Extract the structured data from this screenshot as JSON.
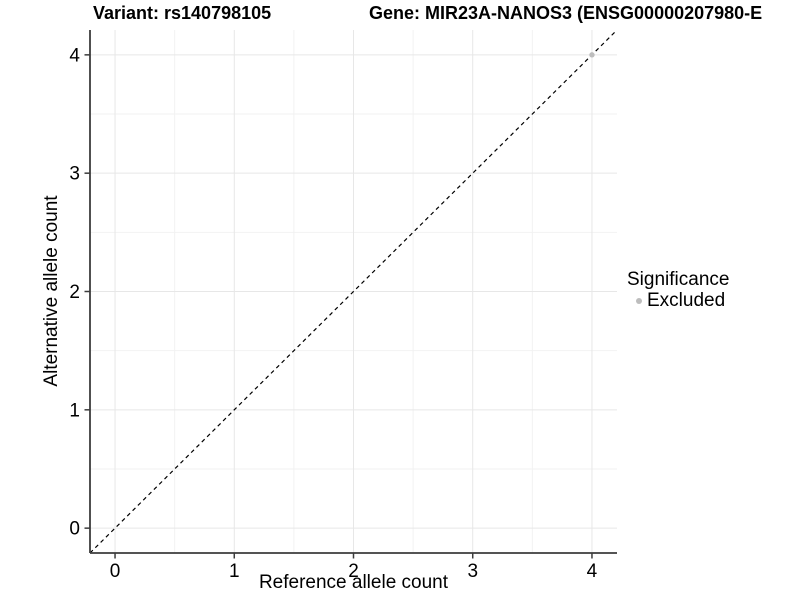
{
  "header": {
    "title_left": "Variant: rs140798105",
    "title_right": "Gene: MIR23A-NANOS3 (ENSG00000207980-E"
  },
  "chart_data": {
    "type": "scatter",
    "xlabel": "Reference allele count",
    "ylabel": "Alternative allele count",
    "xlim": [
      -0.21,
      4.21
    ],
    "ylim": [
      -0.21,
      4.21
    ],
    "x_ticks": [
      0,
      1,
      2,
      3,
      4
    ],
    "y_ticks": [
      0,
      1,
      2,
      3,
      4
    ],
    "x_minor_ticks": [
      0.5,
      1.5,
      2.5,
      3.5
    ],
    "y_minor_ticks": [
      0.5,
      1.5,
      2.5,
      3.5
    ],
    "grid": "major and minor gridlines, white panel background",
    "identity_line": {
      "style": "dashed",
      "slope": 1,
      "intercept": 0,
      "color": "#000000"
    },
    "series": [
      {
        "name": "Excluded",
        "color": "#bdbdbd",
        "points": [
          [
            4,
            4
          ]
        ]
      }
    ],
    "legend": {
      "title": "Significance",
      "position": "right",
      "entries": [
        {
          "label": "Excluded",
          "color": "#bdbdbd"
        }
      ]
    }
  },
  "colors": {
    "grid_major": "#e7e7e7",
    "grid_minor": "#f2f2f2",
    "axis": "#3c3c3c",
    "identity_line": "#000000",
    "point": "#bdbdbd",
    "text": "#000000"
  }
}
